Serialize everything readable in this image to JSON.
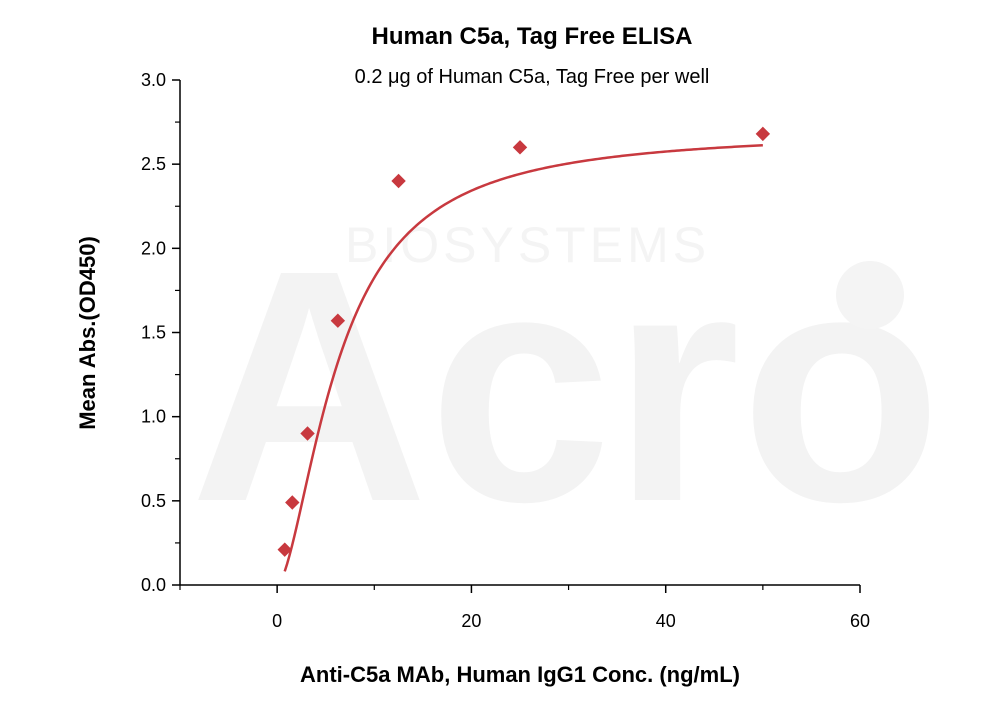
{
  "chart_data": {
    "type": "scatter",
    "title": "Human C5a, Tag Free ELISA",
    "subtitle": "0.2 μg of Human C5a, Tag Free per well",
    "xlabel": "Anti-C5a MAb, Human IgG1 Conc. (ng/mL)",
    "ylabel": "Mean Abs.(OD450)",
    "xlim": [
      -10,
      60
    ],
    "ylim": [
      0,
      3.0
    ],
    "x_ticks": [
      "0",
      "20",
      "40",
      "60"
    ],
    "x_tick_values": [
      0,
      20,
      40,
      60
    ],
    "y_ticks": [
      "0.0",
      "0.5",
      "1.0",
      "1.5",
      "2.0",
      "2.5",
      "3.0"
    ],
    "y_tick_values": [
      0,
      0.5,
      1.0,
      1.5,
      2.0,
      2.5,
      3.0
    ],
    "x_minor_ticks": [
      -10,
      10,
      30,
      50
    ],
    "y_minor_ticks": [
      0.25,
      0.75,
      1.25,
      1.75,
      2.25,
      2.75
    ],
    "grid": false,
    "series": [
      {
        "points": [
          {
            "x": 0.78,
            "y": 0.21
          },
          {
            "x": 1.56,
            "y": 0.49
          },
          {
            "x": 3.13,
            "y": 0.9
          },
          {
            "x": 6.25,
            "y": 1.57
          },
          {
            "x": 12.5,
            "y": 2.4
          },
          {
            "x": 25,
            "y": 2.6
          },
          {
            "x": 50,
            "y": 2.68
          }
        ],
        "fit_curve": {
          "type": "four-parameter-logistic",
          "bottom": 0.0,
          "top": 2.7,
          "ec50": 6.4,
          "hill": 1.65
        },
        "color": "#c8393f"
      }
    ]
  },
  "watermark": {
    "main": "Acro",
    "sub": "BIOSYSTEMS"
  }
}
